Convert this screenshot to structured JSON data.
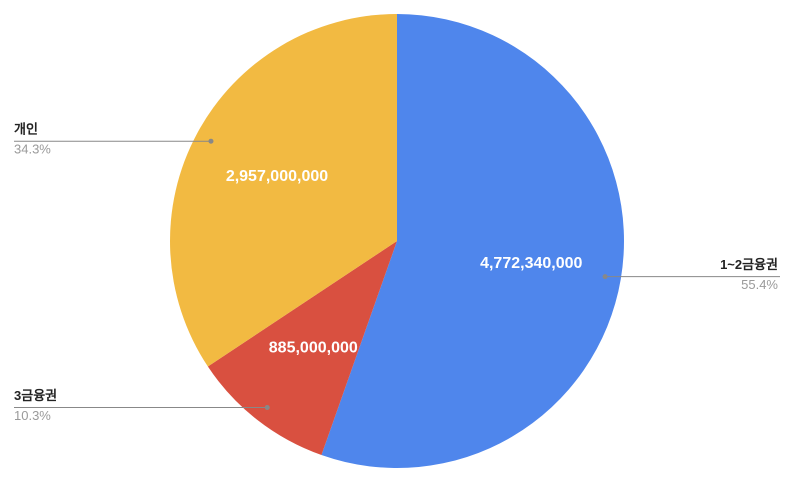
{
  "chart_data": {
    "type": "pie",
    "categories": [
      "1~2금융권",
      "3금융권",
      "개인"
    ],
    "values": [
      4772340000,
      885000000,
      2957000000
    ],
    "value_labels": [
      "4,772,340,000",
      "885,000,000",
      "2,957,000,000"
    ],
    "percents": [
      55.4,
      10.3,
      34.3
    ],
    "percent_labels": [
      "55.4%",
      "10.3%",
      "34.3%"
    ],
    "colors": [
      "#4f86ec",
      "#d95040",
      "#f2ba42"
    ]
  }
}
